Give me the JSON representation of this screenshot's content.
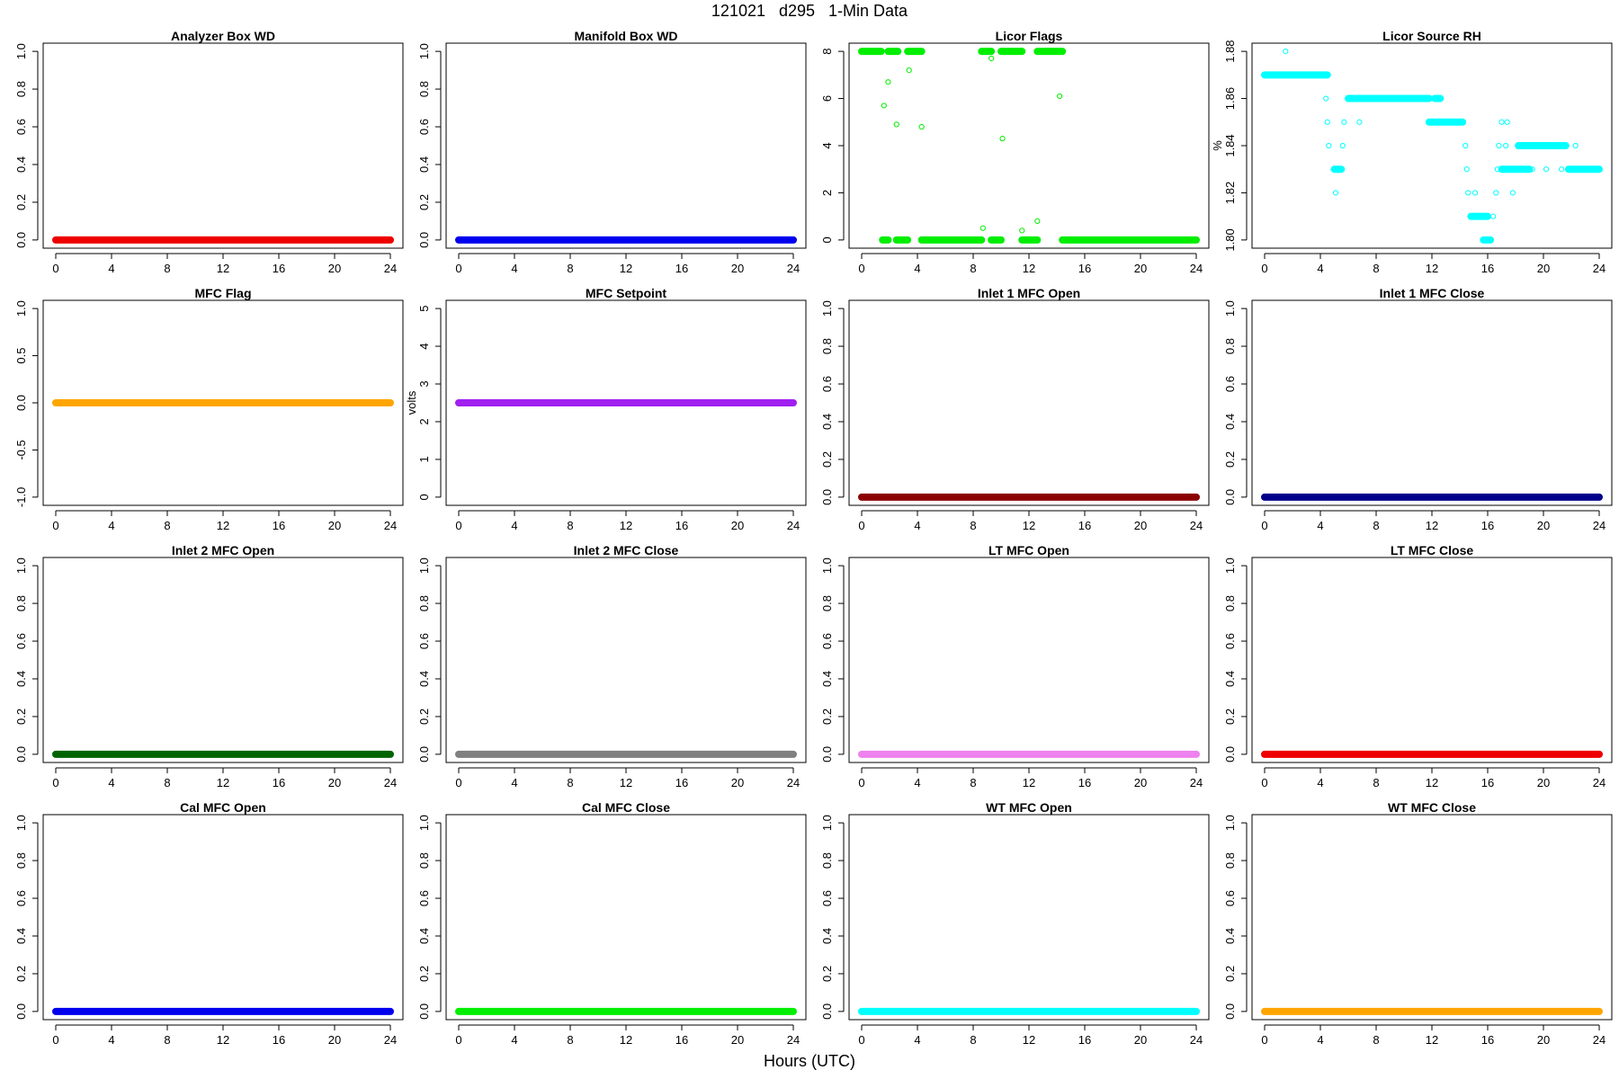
{
  "header": {
    "title": "121021   d295   1-Min Data"
  },
  "footer": {
    "xlabel": "Hours (UTC)"
  },
  "chart_data": [
    {
      "type": "scatter",
      "title": "Analyzer Box WD",
      "ylabel": "",
      "color": "#ee0000",
      "xlim": [
        0,
        24
      ],
      "ylim": [
        0,
        1
      ],
      "yticks": [
        "0.0",
        "0.2",
        "0.4",
        "0.6",
        "0.8",
        "1.0"
      ],
      "ytick_values": [
        0,
        0.2,
        0.4,
        0.6,
        0.8,
        1.0
      ],
      "series": [
        {
          "constant": 0,
          "x_range": [
            0,
            24
          ]
        }
      ]
    },
    {
      "type": "scatter",
      "title": "Manifold Box WD",
      "ylabel": "",
      "color": "#0000ee",
      "xlim": [
        0,
        24
      ],
      "ylim": [
        0,
        1
      ],
      "yticks": [
        "0.0",
        "0.2",
        "0.4",
        "0.6",
        "0.8",
        "1.0"
      ],
      "ytick_values": [
        0,
        0.2,
        0.4,
        0.6,
        0.8,
        1.0
      ],
      "series": [
        {
          "constant": 0,
          "x_range": [
            0,
            24
          ]
        }
      ]
    },
    {
      "type": "scatter",
      "title": "Licor Flags",
      "ylabel": "",
      "color": "#00ee00",
      "xlim": [
        0,
        24
      ],
      "ylim": [
        0,
        8
      ],
      "yticks": [
        "0",
        "2",
        "4",
        "6",
        "8"
      ],
      "ytick_values": [
        0,
        2,
        4,
        6,
        8
      ],
      "series": [
        {
          "segments": [
            {
              "x0": 0,
              "x1": 1.4,
              "y": 8
            },
            {
              "x0": 1.5,
              "x1": 1.9,
              "y": 0
            },
            {
              "x0": 1.9,
              "x1": 2.6,
              "y": 8
            },
            {
              "x0": 2.5,
              "x1": 3.3,
              "y": 0
            },
            {
              "x0": 3.3,
              "x1": 4.3,
              "y": 8
            },
            {
              "x0": 4.3,
              "x1": 8.6,
              "y": 0
            },
            {
              "x0": 8.6,
              "x1": 9.3,
              "y": 8
            },
            {
              "x0": 9.3,
              "x1": 10.0,
              "y": 0
            },
            {
              "x0": 10.0,
              "x1": 11.5,
              "y": 8
            },
            {
              "x0": 11.5,
              "x1": 12.6,
              "y": 0
            },
            {
              "x0": 12.6,
              "x1": 14.4,
              "y": 8
            },
            {
              "x0": 14.4,
              "x1": 24,
              "y": 0
            }
          ],
          "points": [
            [
              1.6,
              5.7
            ],
            [
              1.9,
              6.7
            ],
            [
              2.5,
              4.9
            ],
            [
              3.4,
              7.2
            ],
            [
              4.3,
              4.8
            ],
            [
              8.7,
              0.5
            ],
            [
              9.3,
              7.7
            ],
            [
              10.1,
              4.3
            ],
            [
              11.5,
              0.4
            ],
            [
              12.6,
              0.8
            ],
            [
              14.2,
              6.1
            ]
          ]
        }
      ]
    },
    {
      "type": "scatter",
      "title": "Licor Source RH",
      "ylabel": "%",
      "color": "#00ffff",
      "xlim": [
        0,
        24
      ],
      "ylim": [
        1.8,
        1.88
      ],
      "yticks": [
        "1.80",
        "1.82",
        "1.84",
        "1.86",
        "1.88"
      ],
      "ytick_values": [
        1.8,
        1.82,
        1.84,
        1.86,
        1.88
      ],
      "series": [
        {
          "segments": [
            {
              "x0": 0,
              "x1": 4.5,
              "y": 1.87
            },
            {
              "x0": 5.0,
              "x1": 5.5,
              "y": 1.83
            },
            {
              "x0": 6.0,
              "x1": 11.8,
              "y": 1.86
            },
            {
              "x0": 12.2,
              "x1": 12.6,
              "y": 1.86
            },
            {
              "x0": 11.8,
              "x1": 14.2,
              "y": 1.85
            },
            {
              "x0": 14.8,
              "x1": 16.0,
              "y": 1.81
            },
            {
              "x0": 15.7,
              "x1": 16.2,
              "y": 1.8
            },
            {
              "x0": 17.0,
              "x1": 19.0,
              "y": 1.83
            },
            {
              "x0": 18.2,
              "x1": 19.4,
              "y": 1.84
            },
            {
              "x0": 19.4,
              "x1": 20.6,
              "y": 1.84
            },
            {
              "x0": 20.6,
              "x1": 21.6,
              "y": 1.84
            },
            {
              "x0": 21.8,
              "x1": 24,
              "y": 1.83
            }
          ],
          "points": [
            [
              1.5,
              1.88
            ],
            [
              4.4,
              1.86
            ],
            [
              4.5,
              1.85
            ],
            [
              4.6,
              1.84
            ],
            [
              5.1,
              1.82
            ],
            [
              5.6,
              1.84
            ],
            [
              5.7,
              1.85
            ],
            [
              6.8,
              1.85
            ],
            [
              14.4,
              1.84
            ],
            [
              14.5,
              1.83
            ],
            [
              14.6,
              1.82
            ],
            [
              15.1,
              1.82
            ],
            [
              16.4,
              1.81
            ],
            [
              16.6,
              1.82
            ],
            [
              16.7,
              1.83
            ],
            [
              16.8,
              1.84
            ],
            [
              17.0,
              1.85
            ],
            [
              17.4,
              1.85
            ],
            [
              17.3,
              1.84
            ],
            [
              17.8,
              1.82
            ],
            [
              18.3,
              1.84
            ],
            [
              19.2,
              1.83
            ],
            [
              20.2,
              1.83
            ],
            [
              21.3,
              1.83
            ],
            [
              22.3,
              1.84
            ]
          ]
        }
      ]
    },
    {
      "type": "scatter",
      "title": "MFC Flag",
      "ylabel": "",
      "color": "#ffa500",
      "xlim": [
        0,
        24
      ],
      "ylim": [
        -1,
        1
      ],
      "yticks": [
        "-1.0",
        "-0.5",
        "0.0",
        "0.5",
        "1.0"
      ],
      "ytick_values": [
        -1,
        -0.5,
        0,
        0.5,
        1
      ],
      "series": [
        {
          "constant": 0,
          "x_range": [
            0,
            24
          ]
        }
      ]
    },
    {
      "type": "scatter",
      "title": "MFC Setpoint",
      "ylabel": "volts",
      "color": "#a020f0",
      "xlim": [
        0,
        24
      ],
      "ylim": [
        0,
        5
      ],
      "yticks": [
        "0",
        "1",
        "2",
        "3",
        "4",
        "5"
      ],
      "ytick_values": [
        0,
        1,
        2,
        3,
        4,
        5
      ],
      "series": [
        {
          "constant": 2.5,
          "x_range": [
            0,
            24
          ]
        }
      ]
    },
    {
      "type": "scatter",
      "title": "Inlet 1 MFC Open",
      "ylabel": "",
      "color": "#8b0000",
      "xlim": [
        0,
        24
      ],
      "ylim": [
        0,
        1
      ],
      "yticks": [
        "0.0",
        "0.2",
        "0.4",
        "0.6",
        "0.8",
        "1.0"
      ],
      "ytick_values": [
        0,
        0.2,
        0.4,
        0.6,
        0.8,
        1.0
      ],
      "series": [
        {
          "constant": 0,
          "x_range": [
            0,
            24
          ]
        }
      ]
    },
    {
      "type": "scatter",
      "title": "Inlet 1 MFC Close",
      "ylabel": "",
      "color": "#00008b",
      "xlim": [
        0,
        24
      ],
      "ylim": [
        0,
        1
      ],
      "yticks": [
        "0.0",
        "0.2",
        "0.4",
        "0.6",
        "0.8",
        "1.0"
      ],
      "ytick_values": [
        0,
        0.2,
        0.4,
        0.6,
        0.8,
        1.0
      ],
      "series": [
        {
          "constant": 0,
          "x_range": [
            0,
            24
          ]
        }
      ]
    },
    {
      "type": "scatter",
      "title": "Inlet 2 MFC Open",
      "ylabel": "",
      "color": "#006400",
      "xlim": [
        0,
        24
      ],
      "ylim": [
        0,
        1
      ],
      "yticks": [
        "0.0",
        "0.2",
        "0.4",
        "0.6",
        "0.8",
        "1.0"
      ],
      "ytick_values": [
        0,
        0.2,
        0.4,
        0.6,
        0.8,
        1.0
      ],
      "series": [
        {
          "constant": 0,
          "x_range": [
            0,
            24
          ]
        }
      ]
    },
    {
      "type": "scatter",
      "title": "Inlet 2 MFC Close",
      "ylabel": "",
      "color": "#808080",
      "xlim": [
        0,
        24
      ],
      "ylim": [
        0,
        1
      ],
      "yticks": [
        "0.0",
        "0.2",
        "0.4",
        "0.6",
        "0.8",
        "1.0"
      ],
      "ytick_values": [
        0,
        0.2,
        0.4,
        0.6,
        0.8,
        1.0
      ],
      "series": [
        {
          "constant": 0,
          "x_range": [
            0,
            24
          ]
        }
      ]
    },
    {
      "type": "scatter",
      "title": "LT MFC Open",
      "ylabel": "",
      "color": "#ee82ee",
      "xlim": [
        0,
        24
      ],
      "ylim": [
        0,
        1
      ],
      "yticks": [
        "0.0",
        "0.2",
        "0.4",
        "0.6",
        "0.8",
        "1.0"
      ],
      "ytick_values": [
        0,
        0.2,
        0.4,
        0.6,
        0.8,
        1.0
      ],
      "series": [
        {
          "constant": 0,
          "x_range": [
            0,
            24
          ]
        }
      ]
    },
    {
      "type": "scatter",
      "title": "LT MFC Close",
      "ylabel": "",
      "color": "#ee0000",
      "xlim": [
        0,
        24
      ],
      "ylim": [
        0,
        1
      ],
      "yticks": [
        "0.0",
        "0.2",
        "0.4",
        "0.6",
        "0.8",
        "1.0"
      ],
      "ytick_values": [
        0,
        0.2,
        0.4,
        0.6,
        0.8,
        1.0
      ],
      "series": [
        {
          "constant": 0,
          "x_range": [
            0,
            24
          ]
        }
      ]
    },
    {
      "type": "scatter",
      "title": "Cal MFC Open",
      "ylabel": "",
      "color": "#0000ee",
      "xlim": [
        0,
        24
      ],
      "ylim": [
        0,
        1
      ],
      "yticks": [
        "0.0",
        "0.2",
        "0.4",
        "0.6",
        "0.8",
        "1.0"
      ],
      "ytick_values": [
        0,
        0.2,
        0.4,
        0.6,
        0.8,
        1.0
      ],
      "series": [
        {
          "constant": 0,
          "x_range": [
            0,
            24
          ]
        }
      ]
    },
    {
      "type": "scatter",
      "title": "Cal MFC Close",
      "ylabel": "",
      "color": "#00ee00",
      "xlim": [
        0,
        24
      ],
      "ylim": [
        0,
        1
      ],
      "yticks": [
        "0.0",
        "0.2",
        "0.4",
        "0.6",
        "0.8",
        "1.0"
      ],
      "ytick_values": [
        0,
        0.2,
        0.4,
        0.6,
        0.8,
        1.0
      ],
      "series": [
        {
          "constant": 0,
          "x_range": [
            0,
            24
          ]
        }
      ]
    },
    {
      "type": "scatter",
      "title": "WT MFC Open",
      "ylabel": "",
      "color": "#00ffff",
      "xlim": [
        0,
        24
      ],
      "ylim": [
        0,
        1
      ],
      "yticks": [
        "0.0",
        "0.2",
        "0.4",
        "0.6",
        "0.8",
        "1.0"
      ],
      "ytick_values": [
        0,
        0.2,
        0.4,
        0.6,
        0.8,
        1.0
      ],
      "series": [
        {
          "constant": 0,
          "x_range": [
            0,
            24
          ]
        }
      ]
    },
    {
      "type": "scatter",
      "title": "WT MFC Close",
      "ylabel": "",
      "color": "#ffa500",
      "xlim": [
        0,
        24
      ],
      "ylim": [
        0,
        1
      ],
      "yticks": [
        "0.0",
        "0.2",
        "0.4",
        "0.6",
        "0.8",
        "1.0"
      ],
      "ytick_values": [
        0,
        0.2,
        0.4,
        0.6,
        0.8,
        1.0
      ],
      "series": [
        {
          "constant": 0,
          "x_range": [
            0,
            24
          ]
        }
      ]
    }
  ],
  "x_ticks": [
    "0",
    "4",
    "8",
    "12",
    "16",
    "20",
    "24"
  ]
}
